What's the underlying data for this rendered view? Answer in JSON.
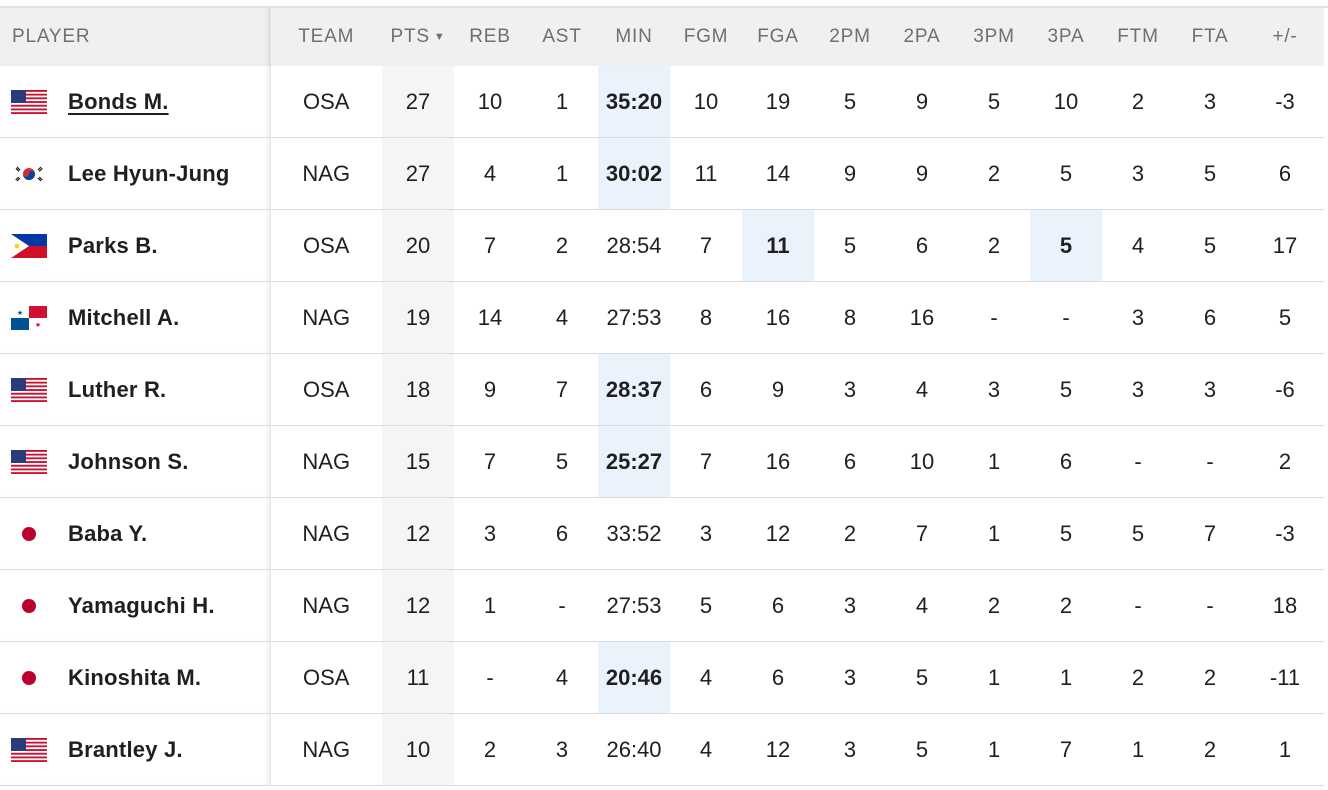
{
  "columns": {
    "player": "PLAYER",
    "team": "TEAM",
    "pts": "PTS",
    "pts_sort_icon": "▼",
    "reb": "REB",
    "ast": "AST",
    "min": "MIN",
    "fgm": "FGM",
    "fga": "FGA",
    "p2m": "2PM",
    "p2a": "2PA",
    "p3m": "3PM",
    "p3a": "3PA",
    "ftm": "FTM",
    "fta": "FTA",
    "pm": "+/-"
  },
  "players": [
    {
      "name": "Bonds M.",
      "flag": "usa-flag-icon",
      "team": "OSA",
      "pts": "27",
      "reb": "10",
      "ast": "1",
      "min": "35:20",
      "fgm": "10",
      "fga": "19",
      "p2m": "5",
      "p2a": "9",
      "p3m": "5",
      "p3a": "10",
      "ftm": "2",
      "fta": "3",
      "pm": "-3"
    },
    {
      "name": "Lee Hyun-Jung",
      "flag": "korea-flag-icon",
      "team": "NAG",
      "pts": "27",
      "reb": "4",
      "ast": "1",
      "min": "30:02",
      "fgm": "11",
      "fga": "14",
      "p2m": "9",
      "p2a": "9",
      "p3m": "2",
      "p3a": "5",
      "ftm": "3",
      "fta": "5",
      "pm": "6"
    },
    {
      "name": "Parks B.",
      "flag": "philippines-flag-icon",
      "team": "OSA",
      "pts": "20",
      "reb": "7",
      "ast": "2",
      "min": "28:54",
      "fgm": "7",
      "fga": "11",
      "p2m": "5",
      "p2a": "6",
      "p3m": "2",
      "p3a": "5",
      "ftm": "4",
      "fta": "5",
      "pm": "17"
    },
    {
      "name": "Mitchell A.",
      "flag": "panama-flag-icon",
      "team": "NAG",
      "pts": "19",
      "reb": "14",
      "ast": "4",
      "min": "27:53",
      "fgm": "8",
      "fga": "16",
      "p2m": "8",
      "p2a": "16",
      "p3m": "-",
      "p3a": "-",
      "ftm": "3",
      "fta": "6",
      "pm": "5"
    },
    {
      "name": "Luther R.",
      "flag": "usa-flag-icon",
      "team": "OSA",
      "pts": "18",
      "reb": "9",
      "ast": "7",
      "min": "28:37",
      "fgm": "6",
      "fga": "9",
      "p2m": "3",
      "p2a": "4",
      "p3m": "3",
      "p3a": "5",
      "ftm": "3",
      "fta": "3",
      "pm": "-6"
    },
    {
      "name": "Johnson S.",
      "flag": "usa-flag-icon",
      "team": "NAG",
      "pts": "15",
      "reb": "7",
      "ast": "5",
      "min": "25:27",
      "fgm": "7",
      "fga": "16",
      "p2m": "6",
      "p2a": "10",
      "p3m": "1",
      "p3a": "6",
      "ftm": "-",
      "fta": "-",
      "pm": "2"
    },
    {
      "name": "Baba Y.",
      "flag": "japan-flag-icon",
      "team": "NAG",
      "pts": "12",
      "reb": "3",
      "ast": "6",
      "min": "33:52",
      "fgm": "3",
      "fga": "12",
      "p2m": "2",
      "p2a": "7",
      "p3m": "1",
      "p3a": "5",
      "ftm": "5",
      "fta": "7",
      "pm": "-3"
    },
    {
      "name": "Yamaguchi H.",
      "flag": "japan-flag-icon",
      "team": "NAG",
      "pts": "12",
      "reb": "1",
      "ast": "-",
      "min": "27:53",
      "fgm": "5",
      "fga": "6",
      "p2m": "3",
      "p2a": "4",
      "p3m": "2",
      "p3a": "2",
      "ftm": "-",
      "fta": "-",
      "pm": "18"
    },
    {
      "name": "Kinoshita M.",
      "flag": "japan-flag-icon",
      "team": "OSA",
      "pts": "11",
      "reb": "-",
      "ast": "4",
      "min": "20:46",
      "fgm": "4",
      "fga": "6",
      "p2m": "3",
      "p2a": "5",
      "p3m": "1",
      "p3a": "1",
      "ftm": "2",
      "fta": "2",
      "pm": "-11"
    },
    {
      "name": "Brantley J.",
      "flag": "usa-flag-icon",
      "team": "NAG",
      "pts": "10",
      "reb": "2",
      "ast": "3",
      "min": "26:40",
      "fgm": "4",
      "fga": "12",
      "p2m": "3",
      "p2a": "5",
      "p3m": "1",
      "p3a": "7",
      "ftm": "1",
      "fta": "2",
      "pm": "1"
    }
  ],
  "highlights": {
    "0": [
      "min"
    ],
    "1": [
      "min"
    ],
    "2": [
      "fga",
      "p3a"
    ],
    "4": [
      "min"
    ],
    "5": [
      "min"
    ],
    "8": [
      "min"
    ]
  },
  "linked_player_index": 0,
  "colors": {
    "highlight_bg": "#eaf3fc",
    "pts_column_bg": "#f4f5f6",
    "header_bg": "#f0f0f0"
  }
}
